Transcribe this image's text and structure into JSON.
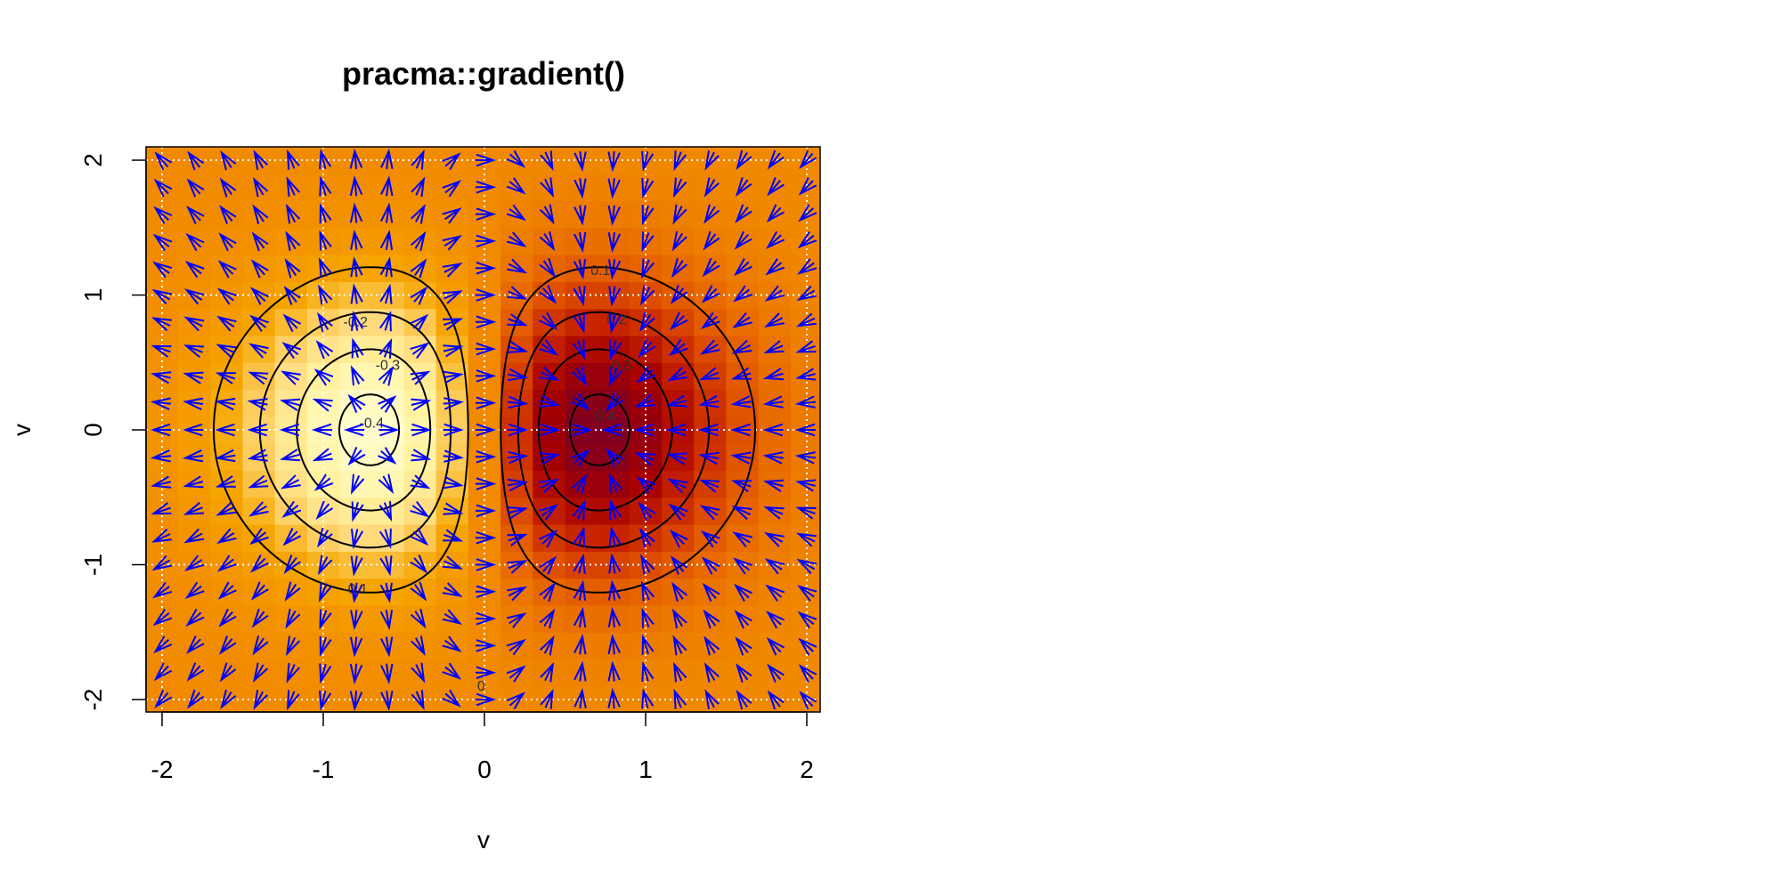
{
  "chart_data": {
    "type": "heatmap",
    "title": "pracma::gradient()",
    "xlabel": "v",
    "ylabel": "v",
    "xlim": [
      -2.1,
      2.1
    ],
    "ylim": [
      -2.1,
      2.1
    ],
    "x_ticks": [
      -2,
      -1,
      0,
      1,
      2
    ],
    "y_ticks": [
      -2,
      -1,
      0,
      1,
      2
    ],
    "x_tick_labels": [
      "-2",
      "-1",
      "0",
      "1",
      "2"
    ],
    "y_tick_labels": [
      "-2",
      "-1",
      "0",
      "1",
      "2"
    ],
    "grid": true,
    "grid_style": "white dotted at integer ticks",
    "surface": {
      "function": "z = x * exp(-x^2 - y^2)",
      "grid_from": -2,
      "grid_to": 2,
      "grid_step": 0.2
    },
    "colormap": {
      "name": "heat (reversed)",
      "low_color": "#fffdd0",
      "high_color": "#7f0022",
      "stops": [
        "#fffdd0",
        "#fff3a0",
        "#ffd97a",
        "#f6a600",
        "#f18a00",
        "#e35a00",
        "#c92600",
        "#a50000",
        "#7f0022"
      ]
    },
    "contour_levels": [
      -0.4,
      -0.3,
      -0.2,
      -0.1,
      0,
      0.1,
      0.2,
      0.3,
      0.4
    ],
    "contour_labels": [
      {
        "text": "-0.4",
        "x": -0.7,
        "y": 0.05
      },
      {
        "text": "-0.3",
        "x": -0.6,
        "y": 0.48
      },
      {
        "text": "-0.2",
        "x": -0.8,
        "y": 0.8
      },
      {
        "text": "-0.1",
        "x": -0.8,
        "y": -1.18
      },
      {
        "text": "0",
        "x": -0.02,
        "y": -1.9
      },
      {
        "text": "0.1",
        "x": 0.72,
        "y": 1.18
      },
      {
        "text": "0.2",
        "x": 0.82,
        "y": 0.82
      },
      {
        "text": "0.3",
        "x": 0.85,
        "y": 0.48
      },
      {
        "text": "0.4",
        "x": 0.75,
        "y": 0.1
      }
    ],
    "vector_field": {
      "description": "gradient arrows of z on the 0.2 grid",
      "color": "#0000ff"
    },
    "contour_color": "#000000"
  }
}
